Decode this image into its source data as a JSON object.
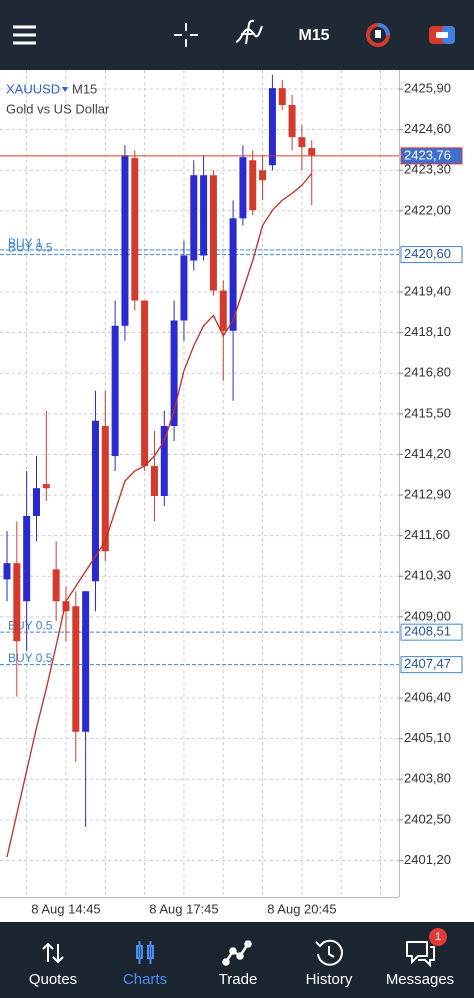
{
  "app_bar": {
    "timeframe": "M15"
  },
  "chart_data": {
    "type": "candlestick",
    "symbol": "XAUUSD",
    "timeframe": "M15",
    "subtitle": "Gold vs US Dollar",
    "categories": [
      null,
      null,
      null,
      null,
      null,
      null,
      "8 Aug 14:45",
      null,
      null,
      null,
      null,
      null,
      null,
      null,
      null,
      null,
      null,
      null,
      "8 Aug 17:45",
      null,
      null,
      null,
      null,
      null,
      null,
      null,
      null,
      null,
      null,
      null,
      "8 Aug 20:45",
      null
    ],
    "open": [
      2410.2,
      2410.72,
      2409.5,
      2412.23,
      2413.25,
      2410.52,
      2409.5,
      2409.34,
      2405.32,
      2410.14,
      2415.11,
      2414.15,
      2418.32,
      2423.69,
      2419.13,
      2413.83,
      2412.87,
      2415.11,
      2418.49,
      2420.41,
      2420.57,
      2423.14,
      2419.45,
      2418.16,
      2421.76,
      2423.62,
      2423.3,
      2423.46,
      2425.93,
      2425.39,
      2424.36,
      2424.01
    ],
    "high": [
      2411.74,
      2412.06,
      2413.67,
      2414.15,
      2415.6,
      2411.42,
      2409.98,
      2409.82,
      2409.82,
      2416.24,
      2416.24,
      2419.13,
      2424.1,
      2423.94,
      2419.13,
      2414.95,
      2415.6,
      2419.13,
      2421.05,
      2423.62,
      2423.78,
      2423.3,
      2419.77,
      2422.34,
      2424.1,
      2423.94,
      2423.78,
      2426.35,
      2426.19,
      2425.71,
      2424.74,
      2424.26
    ],
    "low": [
      2409.5,
      2406.45,
      2407.9,
      2411.42,
      2412.71,
      2408.86,
      2408.22,
      2404.36,
      2402.27,
      2409.18,
      2410.78,
      2413.67,
      2417.84,
      2418.81,
      2413.67,
      2412.06,
      2412.55,
      2414.63,
      2417.84,
      2420.09,
      2420.41,
      2419.29,
      2416.56,
      2415.92,
      2421.53,
      2421.86,
      2422.34,
      2423.3,
      2425.23,
      2423.94,
      2423.3,
      2422.18
    ],
    "close": [
      2410.72,
      2408.22,
      2412.23,
      2413.12,
      2413.12,
      2409.5,
      2409.18,
      2405.32,
      2409.82,
      2415.28,
      2411.1,
      2418.32,
      2423.78,
      2419.13,
      2413.83,
      2412.87,
      2415.11,
      2418.49,
      2420.57,
      2423.14,
      2423.14,
      2419.45,
      2418.16,
      2421.76,
      2423.72,
      2422.02,
      2422.98,
      2425.93,
      2425.39,
      2424.36,
      2424.04,
      2423.78
    ],
    "up_color": "#2a2ad0",
    "down_color": "#d63a2c",
    "ma": {
      "color": "#cc2a22",
      "values": [
        2401.31,
        2402.69,
        2404.07,
        2405.45,
        2406.7,
        2408.08,
        2409.5,
        2409.98,
        2410.46,
        2410.94,
        2411.42,
        2412.39,
        2413.35,
        2413.67,
        2413.83,
        2414.15,
        2414.63,
        2415.6,
        2416.88,
        2417.68,
        2418.32,
        2418.65,
        2418.0,
        2418.49,
        2419.45,
        2420.41,
        2421.53,
        2422.02,
        2422.34,
        2422.56,
        2422.82,
        2423.2
      ]
    },
    "ylim": [
      2400.03,
      2426.51
    ],
    "yticks": [
      {
        "value": 2425.9,
        "label": "2425,90"
      },
      {
        "value": 2424.6,
        "label": "2424,60"
      },
      {
        "value": 2423.3,
        "label": "2423,30"
      },
      {
        "value": 2422.0,
        "label": "2422,00"
      },
      {
        "value": 2419.4,
        "label": "2419,40"
      },
      {
        "value": 2418.1,
        "label": "2418,10"
      },
      {
        "value": 2416.8,
        "label": "2416,80"
      },
      {
        "value": 2415.5,
        "label": "2415,50"
      },
      {
        "value": 2414.2,
        "label": "2414,20"
      },
      {
        "value": 2412.9,
        "label": "2412,90"
      },
      {
        "value": 2411.6,
        "label": "2411,60"
      },
      {
        "value": 2410.3,
        "label": "2410,30"
      },
      {
        "value": 2409.0,
        "label": "2409,00"
      },
      {
        "value": 2406.4,
        "label": "2406,40"
      },
      {
        "value": 2405.1,
        "label": "2405,10"
      },
      {
        "value": 2403.8,
        "label": "2403,80"
      },
      {
        "value": 2402.5,
        "label": "2402,50"
      },
      {
        "value": 2401.2,
        "label": "2401,20"
      }
    ],
    "grid": true,
    "price_line": {
      "value": 2423.76,
      "label": "2423,76",
      "color": "#d63a2c"
    },
    "order_lines": [
      {
        "text": "BUY 1",
        "value": 2420.75
      },
      {
        "text": "BUY 0.5",
        "value": 2420.6,
        "label": "2420,60"
      },
      {
        "text": "BUY 0.5",
        "value": 2408.51,
        "label": "2408,51"
      },
      {
        "text": "BUY 0.5",
        "value": 2407.47,
        "label": "2407,47"
      }
    ],
    "order_color": "#3f86d6"
  },
  "nav": {
    "items": [
      "Quotes",
      "Charts",
      "Trade",
      "History",
      "Messages"
    ],
    "active": 1,
    "badge": "1"
  }
}
